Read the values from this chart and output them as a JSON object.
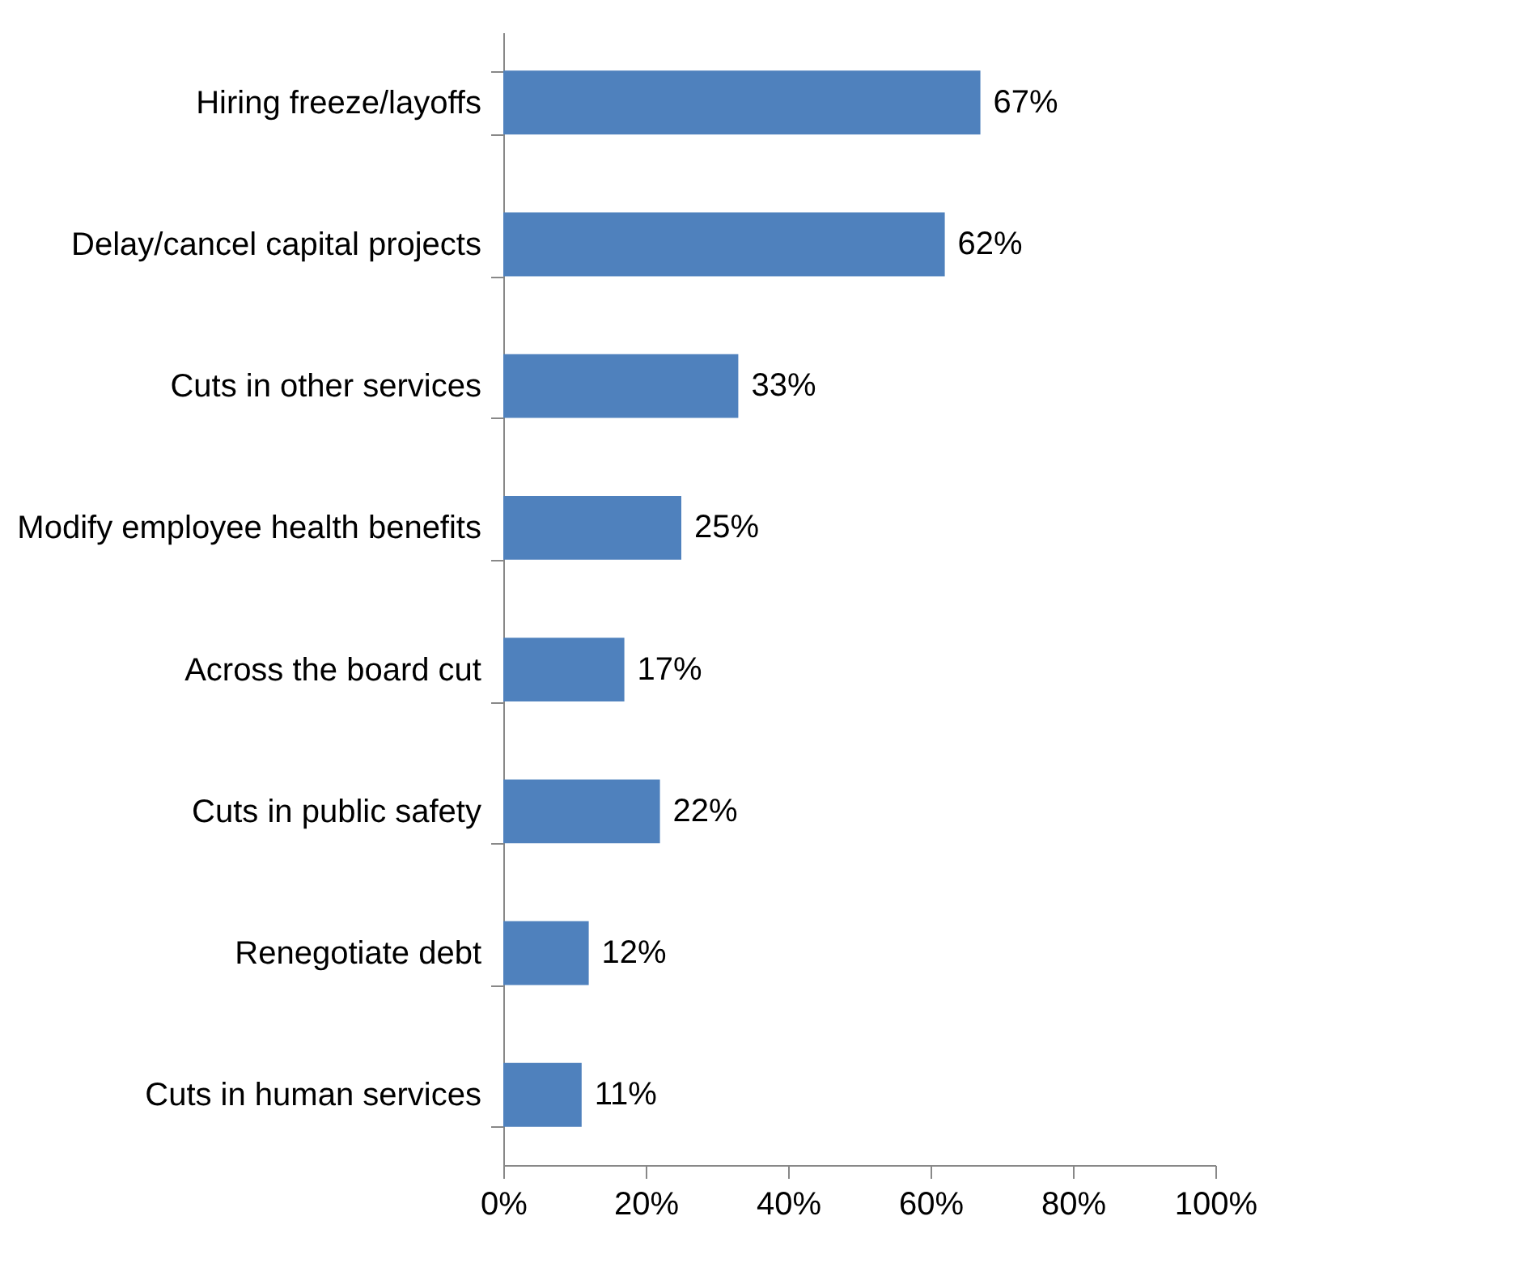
{
  "chart_data": {
    "type": "bar",
    "orientation": "horizontal",
    "categories": [
      "Hiring freeze/layoffs",
      "Delay/cancel capital projects",
      "Cuts in other services",
      "Modify employee health benefits",
      "Across the board cut",
      "Cuts in public safety",
      "Renegotiate debt",
      "Cuts in human services"
    ],
    "values": [
      67,
      62,
      33,
      25,
      17,
      22,
      12,
      11
    ],
    "value_labels": [
      "67%",
      "62%",
      "33%",
      "25%",
      "17%",
      "22%",
      "12%",
      "11%"
    ],
    "color": "#4f81bd",
    "xlim": [
      0,
      100
    ],
    "xticks": [
      {
        "value": 0,
        "label": "0%"
      },
      {
        "value": 20,
        "label": "20%"
      },
      {
        "value": 40,
        "label": "40%"
      },
      {
        "value": 60,
        "label": "60%"
      },
      {
        "value": 80,
        "label": "80%"
      },
      {
        "value": 100,
        "label": "100%"
      }
    ],
    "grid": false
  }
}
